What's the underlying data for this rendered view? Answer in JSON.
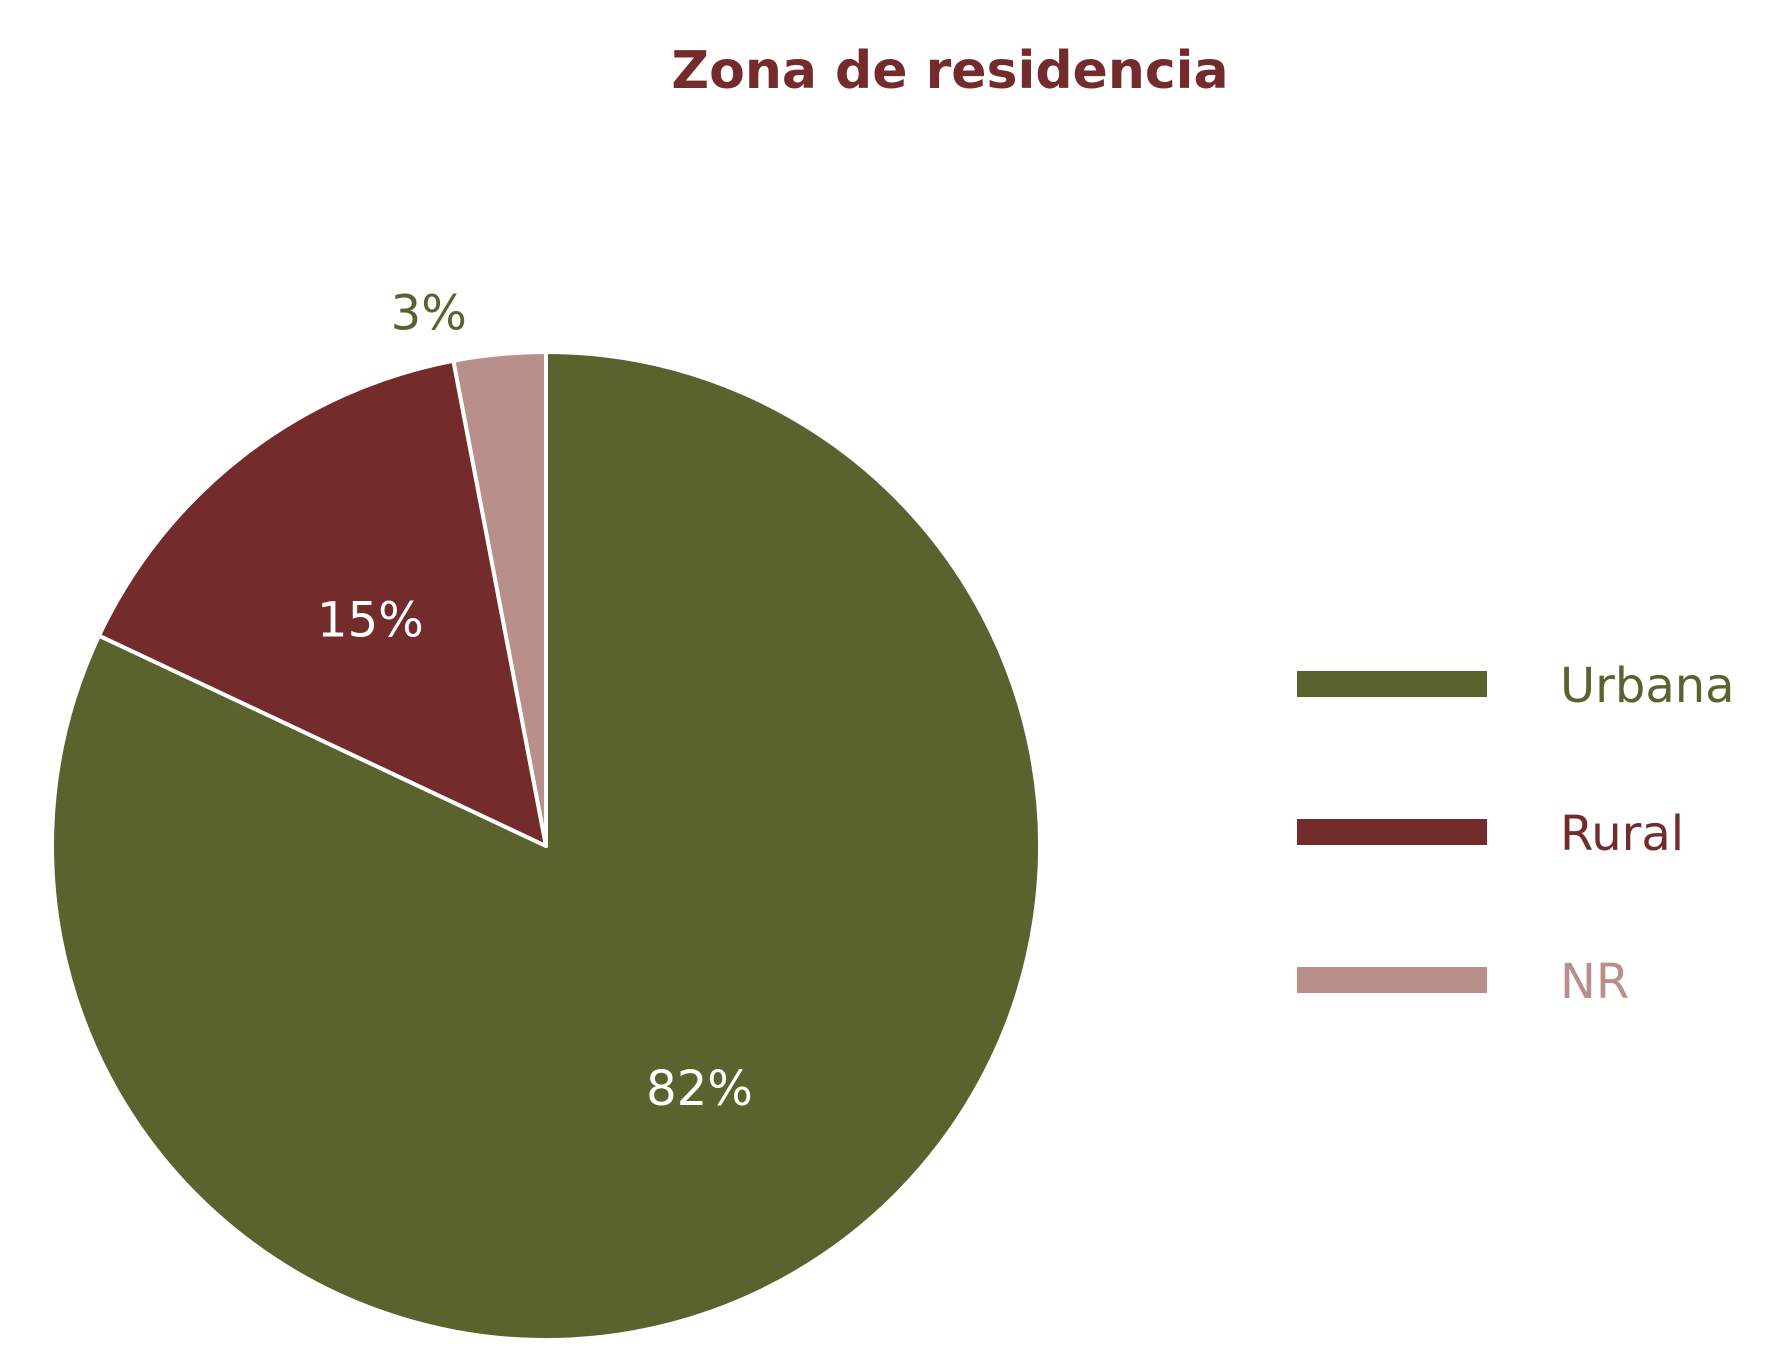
{
  "chart_data": {
    "type": "pie",
    "title": "Zona de residencia",
    "start_angle_deg": 0,
    "direction": "clockwise",
    "legend_position": "right",
    "slices": [
      {
        "label": "Urbana",
        "value": 82,
        "display": "82%",
        "color": "#5a632e",
        "label_color": "#ffffff",
        "label_placement": "inside"
      },
      {
        "label": "Rural",
        "value": 15,
        "display": "15%",
        "color": "#742b2c",
        "label_color": "#ffffff",
        "label_placement": "inside"
      },
      {
        "label": "NR",
        "value": 3,
        "display": "3%",
        "color": "#b98f8c",
        "label_color": "#5a632e",
        "label_placement": "outside"
      }
    ],
    "title_color": "#742b2c",
    "slice_border_color": "#ffffff"
  }
}
